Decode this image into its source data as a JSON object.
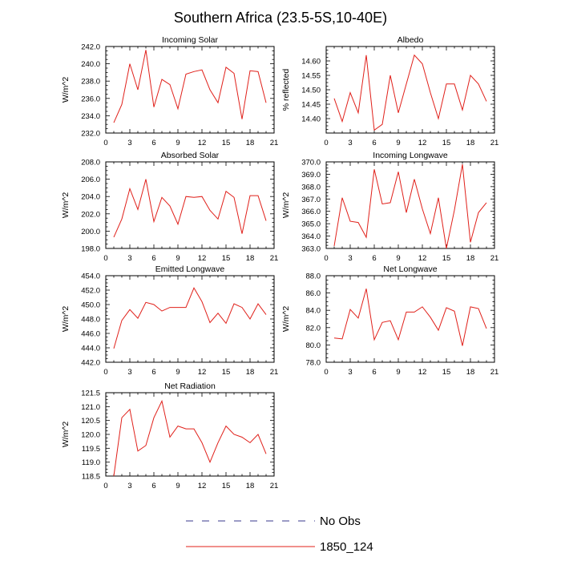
{
  "figure_title": "Southern Africa (23.5-5S,10-40E)",
  "legend": [
    {
      "label": "No Obs",
      "color": "#3a3a8c",
      "style": "dashed"
    },
    {
      "label": "1850_124",
      "color": "#e0201a",
      "style": "solid"
    }
  ],
  "chart_data": [
    {
      "type": "line",
      "title": "Incoming Solar",
      "ylabel": "W/m^2",
      "xlim": [
        0,
        21
      ],
      "ylim": [
        232,
        242
      ],
      "xticks": [
        0,
        3,
        6,
        9,
        12,
        15,
        18,
        21
      ],
      "yticks": [
        232,
        234,
        236,
        238,
        240,
        242
      ],
      "ydecimals": 1,
      "series": [
        {
          "color": "#e0201a",
          "x": [
            1,
            2,
            3,
            4,
            5,
            6,
            7,
            8,
            9,
            10,
            11,
            12,
            13,
            14,
            15,
            16,
            17,
            18,
            19,
            20
          ],
          "y": [
            233.2,
            235.3,
            240.0,
            237.0,
            241.6,
            235.0,
            238.2,
            237.6,
            234.8,
            238.8,
            239.1,
            239.3,
            237.0,
            235.5,
            239.6,
            238.9,
            233.6,
            239.2,
            239.1,
            235.5
          ]
        }
      ]
    },
    {
      "type": "line",
      "title": "Albedo",
      "ylabel": "% reflected",
      "xlim": [
        0,
        21
      ],
      "ylim": [
        14.35,
        14.65
      ],
      "xticks": [
        0,
        3,
        6,
        9,
        12,
        15,
        18,
        21
      ],
      "yticks": [
        14.4,
        14.45,
        14.5,
        14.55,
        14.6
      ],
      "ydecimals": 2,
      "series": [
        {
          "color": "#e0201a",
          "x": [
            1,
            2,
            3,
            4,
            5,
            6,
            7,
            8,
            9,
            10,
            11,
            12,
            13,
            14,
            15,
            16,
            17,
            18,
            19,
            20
          ],
          "y": [
            14.47,
            14.39,
            14.49,
            14.42,
            14.62,
            14.36,
            14.38,
            14.55,
            14.42,
            14.52,
            14.62,
            14.59,
            14.49,
            14.4,
            14.52,
            14.52,
            14.43,
            14.55,
            14.52,
            14.46
          ]
        }
      ]
    },
    {
      "type": "line",
      "title": "Absorbed Solar",
      "ylabel": "W/m^2",
      "xlim": [
        0,
        21
      ],
      "ylim": [
        198,
        208
      ],
      "xticks": [
        0,
        3,
        6,
        9,
        12,
        15,
        18,
        21
      ],
      "yticks": [
        198,
        200,
        202,
        204,
        206,
        208
      ],
      "ydecimals": 1,
      "series": [
        {
          "color": "#e0201a",
          "x": [
            1,
            2,
            3,
            4,
            5,
            6,
            7,
            8,
            9,
            10,
            11,
            12,
            13,
            14,
            15,
            16,
            17,
            18,
            19,
            20
          ],
          "y": [
            199.3,
            201.4,
            204.9,
            202.5,
            206.0,
            201.1,
            203.9,
            202.9,
            200.8,
            204.0,
            203.9,
            204.0,
            202.4,
            201.4,
            204.6,
            203.9,
            199.7,
            204.1,
            204.1,
            201.2
          ]
        }
      ]
    },
    {
      "type": "line",
      "title": "Incoming Longwave",
      "ylabel": "W/m^2",
      "xlim": [
        0,
        21
      ],
      "ylim": [
        363,
        370
      ],
      "xticks": [
        0,
        3,
        6,
        9,
        12,
        15,
        18,
        21
      ],
      "yticks": [
        363,
        364,
        365,
        366,
        367,
        368,
        369,
        370
      ],
      "ydecimals": 1,
      "series": [
        {
          "color": "#e0201a",
          "x": [
            1,
            2,
            3,
            4,
            5,
            6,
            7,
            8,
            9,
            10,
            11,
            12,
            13,
            14,
            15,
            16,
            17,
            18,
            19,
            20
          ],
          "y": [
            363.2,
            367.1,
            365.2,
            365.1,
            363.9,
            369.4,
            366.6,
            366.7,
            369.2,
            365.9,
            368.6,
            366.2,
            364.2,
            367.1,
            363.0,
            366.1,
            369.8,
            363.5,
            365.9,
            366.7
          ]
        }
      ]
    },
    {
      "type": "line",
      "title": "Emitted Longwave",
      "ylabel": "W/m^2",
      "xlim": [
        0,
        21
      ],
      "ylim": [
        442,
        454
      ],
      "xticks": [
        0,
        3,
        6,
        9,
        12,
        15,
        18,
        21
      ],
      "yticks": [
        442,
        444,
        446,
        448,
        450,
        452,
        454
      ],
      "ydecimals": 1,
      "series": [
        {
          "color": "#e0201a",
          "x": [
            1,
            2,
            3,
            4,
            5,
            6,
            7,
            8,
            9,
            10,
            11,
            12,
            13,
            14,
            15,
            16,
            17,
            18,
            19,
            20
          ],
          "y": [
            443.9,
            447.8,
            449.3,
            448.1,
            450.3,
            450.0,
            449.1,
            449.6,
            449.6,
            449.6,
            452.3,
            450.4,
            447.5,
            448.8,
            447.4,
            450.1,
            449.6,
            448.0,
            450.1,
            448.6
          ]
        }
      ]
    },
    {
      "type": "line",
      "title": "Net Longwave",
      "ylabel": "W/m^2",
      "xlim": [
        0,
        21
      ],
      "ylim": [
        78,
        88
      ],
      "xticks": [
        0,
        3,
        6,
        9,
        12,
        15,
        18,
        21
      ],
      "yticks": [
        78,
        80,
        82,
        84,
        86,
        88
      ],
      "ydecimals": 1,
      "series": [
        {
          "color": "#e0201a",
          "x": [
            1,
            2,
            3,
            4,
            5,
            6,
            7,
            8,
            9,
            10,
            11,
            12,
            13,
            14,
            15,
            16,
            17,
            18,
            19,
            20
          ],
          "y": [
            80.8,
            80.7,
            84.1,
            83.1,
            86.5,
            80.6,
            82.6,
            82.8,
            80.6,
            83.8,
            83.8,
            84.4,
            83.2,
            81.7,
            84.3,
            83.9,
            79.9,
            84.4,
            84.2,
            81.9
          ]
        }
      ]
    },
    {
      "type": "line",
      "title": "Net Radiation",
      "ylabel": "W/m^2",
      "xlim": [
        0,
        21
      ],
      "ylim": [
        118.5,
        121.5
      ],
      "xticks": [
        0,
        3,
        6,
        9,
        12,
        15,
        18,
        21
      ],
      "yticks": [
        118.5,
        119.0,
        119.5,
        120.0,
        120.5,
        121.0,
        121.5
      ],
      "ydecimals": 1,
      "series": [
        {
          "color": "#e0201a",
          "x": [
            1,
            2,
            3,
            4,
            5,
            6,
            7,
            8,
            9,
            10,
            11,
            12,
            13,
            14,
            15,
            16,
            17,
            18,
            19,
            20
          ],
          "y": [
            118.5,
            120.6,
            120.9,
            119.4,
            119.6,
            120.6,
            121.2,
            119.9,
            120.3,
            120.2,
            120.2,
            119.7,
            119.0,
            119.7,
            120.3,
            120.0,
            119.9,
            119.7,
            120.0,
            119.3
          ]
        }
      ]
    }
  ]
}
